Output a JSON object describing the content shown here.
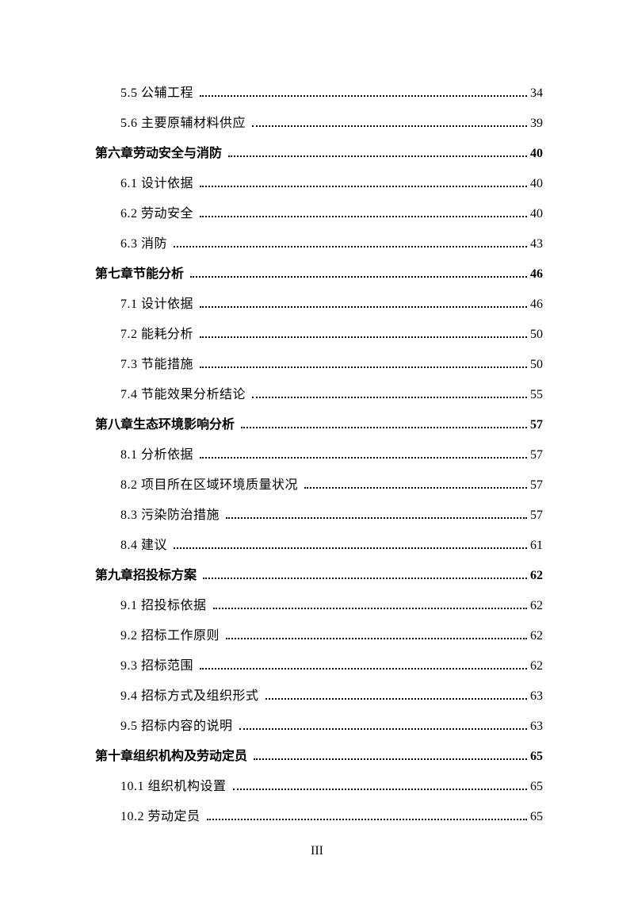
{
  "entries": [
    {
      "level": "sub",
      "label": "5.5 公辅工程",
      "page": "34"
    },
    {
      "level": "sub",
      "label": "5.6 主要原辅材料供应",
      "page": "39"
    },
    {
      "level": "chapter",
      "label": "第六章劳动安全与消防",
      "page": "40"
    },
    {
      "level": "sub",
      "label": "6.1 设计依据",
      "page": "40"
    },
    {
      "level": "sub",
      "label": "6.2 劳动安全",
      "page": "40"
    },
    {
      "level": "sub",
      "label": "6.3 消防",
      "page": "43"
    },
    {
      "level": "chapter",
      "label": "第七章节能分析",
      "page": "46"
    },
    {
      "level": "sub",
      "label": "7.1 设计依据",
      "page": "46"
    },
    {
      "level": "sub",
      "label": "7.2 能耗分析",
      "page": "50"
    },
    {
      "level": "sub",
      "label": "7.3 节能措施",
      "page": "50"
    },
    {
      "level": "sub",
      "label": "7.4 节能效果分析结论",
      "page": "55"
    },
    {
      "level": "chapter",
      "label": "第八章生态环境影响分析",
      "page": "57"
    },
    {
      "level": "sub",
      "label": "8.1 分析依据",
      "page": "57"
    },
    {
      "level": "sub",
      "label": "8.2 项目所在区域环境质量状况",
      "page": "57"
    },
    {
      "level": "sub",
      "label": "8.3 污染防治措施",
      "page": "57"
    },
    {
      "level": "sub",
      "label": "8.4 建议",
      "page": "61"
    },
    {
      "level": "chapter",
      "label": "第九章招投标方案",
      "page": "62"
    },
    {
      "level": "sub",
      "label": "9.1 招投标依据",
      "page": "62"
    },
    {
      "level": "sub",
      "label": "9.2 招标工作原则",
      "page": "62"
    },
    {
      "level": "sub",
      "label": "9.3 招标范围",
      "page": "62"
    },
    {
      "level": "sub",
      "label": "9.4 招标方式及组织形式",
      "page": "63"
    },
    {
      "level": "sub",
      "label": "9.5 招标内容的说明",
      "page": "63"
    },
    {
      "level": "chapter",
      "label": "第十章组织机构及劳动定员",
      "page": "65"
    },
    {
      "level": "sub",
      "label": "10.1 组织机构设置",
      "page": "65"
    },
    {
      "level": "sub",
      "label": "10.2 劳动定员",
      "page": "65"
    }
  ],
  "page_number": "III"
}
